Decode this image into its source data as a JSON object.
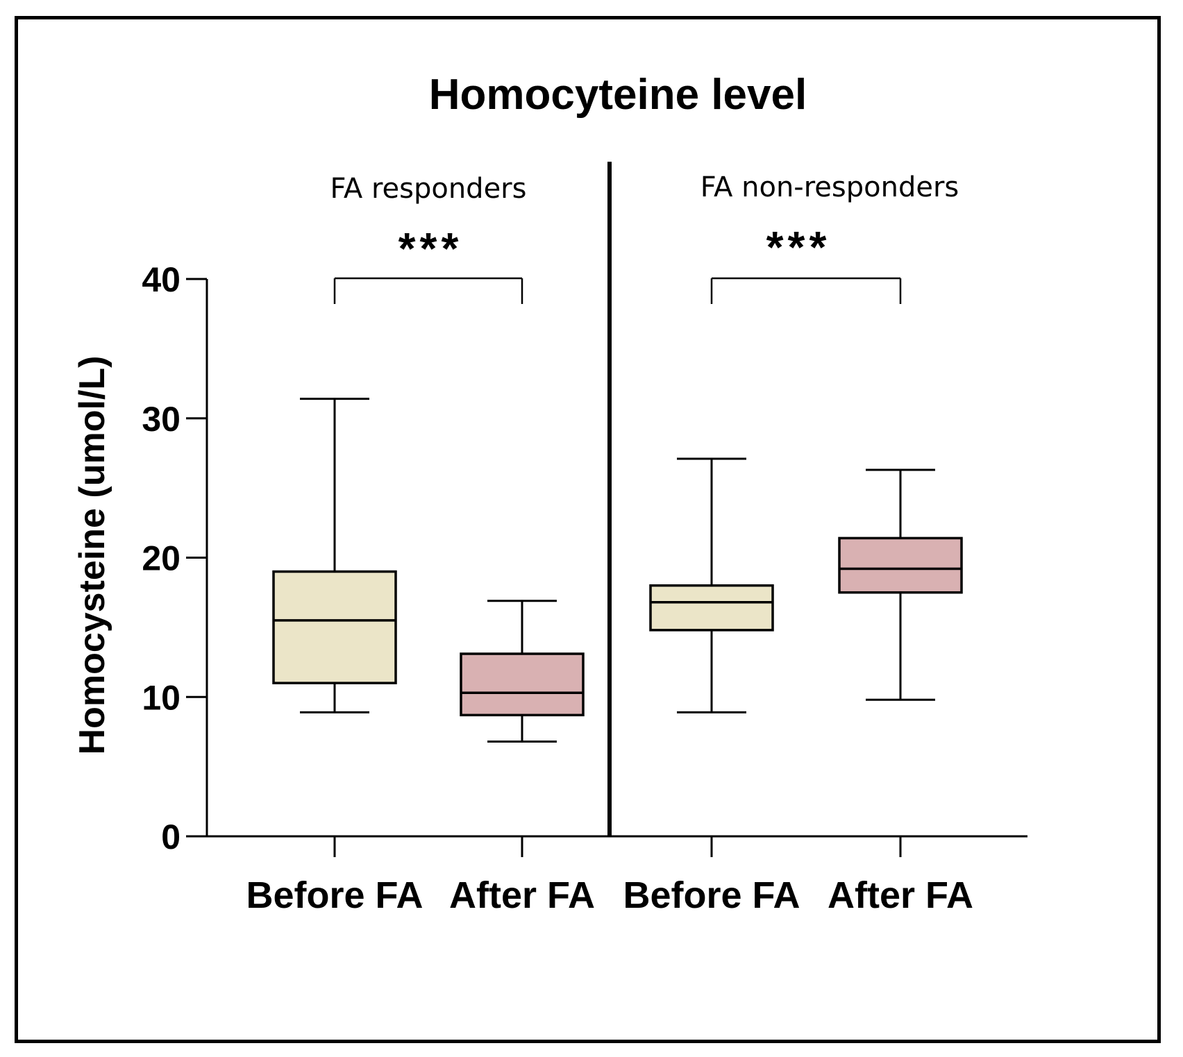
{
  "chart_data": {
    "type": "box",
    "title": "Homocyteine level",
    "ylabel": "Homocysteine (umol/L)",
    "xlabel": "",
    "ylim": [
      0,
      40
    ],
    "yticks": [
      0,
      10,
      20,
      30,
      40
    ],
    "colors": {
      "before": "#ebe5c8",
      "after": "#d9b1b2",
      "stroke": "#000000"
    },
    "panels": [
      {
        "name": "FA responders",
        "significance": "***",
        "boxes": [
          {
            "label": "Before FA",
            "whisker_low": 8.9,
            "q1": 11.0,
            "median": 15.5,
            "q3": 19.0,
            "whisker_high": 31.4,
            "color_key": "before"
          },
          {
            "label": "After FA",
            "whisker_low": 6.8,
            "q1": 8.7,
            "median": 10.3,
            "q3": 13.1,
            "whisker_high": 16.9,
            "color_key": "after"
          }
        ]
      },
      {
        "name": "FA non-responders",
        "significance": "***",
        "boxes": [
          {
            "label": "Before FA",
            "whisker_low": 8.9,
            "q1": 14.8,
            "median": 16.8,
            "q3": 18.0,
            "whisker_high": 27.1,
            "color_key": "before"
          },
          {
            "label": "After FA",
            "whisker_low": 9.8,
            "q1": 17.5,
            "median": 19.2,
            "q3": 21.4,
            "whisker_high": 26.3,
            "color_key": "after"
          }
        ]
      }
    ]
  }
}
